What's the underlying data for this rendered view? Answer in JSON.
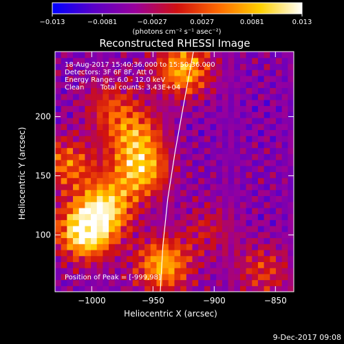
{
  "chart_data": {
    "type": "heatmap",
    "title": "Reconstructed RHESSI Image",
    "xlabel": "Heliocentric X (arcsec)",
    "ylabel": "Heliocentric Y (arcsec)",
    "xlim": [
      -1030,
      -835
    ],
    "ylim": [
      52,
      255
    ],
    "x_ticks": [
      -1000,
      -950,
      -900,
      -850
    ],
    "y_ticks": [
      100,
      150,
      200
    ],
    "x_tick_labels": [
      "−1000",
      "−950",
      "−900",
      "−850"
    ],
    "y_tick_labels": [
      "100",
      "150",
      "200"
    ],
    "colorbar": {
      "min": -0.013,
      "max": 0.013,
      "tick_labels": [
        "−0.013",
        "−0.0081",
        "−0.0027",
        "0.0027",
        "0.0081",
        "0.013"
      ],
      "unit_label": "(photons cm⁻² s⁻¹ asec⁻²)",
      "colors": [
        "#0000ff",
        "#5a00c8",
        "#9a009a",
        "#d01010",
        "#ff6a00",
        "#ffd000",
        "#ffffff"
      ]
    },
    "annotations": [
      "18-Aug-2017 15:40:36.000 to 15:50:36.000",
      "Detectors: 3F 6F 8F, Att 0",
      "Energy Range: 6.0 - 12.0 keV",
      "Clean",
      "Total counts: 3.43E+04"
    ],
    "peak_label": "Position of Peak = [-999,98]",
    "limb": [
      [
        -944,
        52
      ],
      [
        -942,
        90
      ],
      [
        -938,
        130
      ],
      [
        -932,
        170
      ],
      [
        -925,
        210
      ],
      [
        -917,
        255
      ]
    ],
    "sources": [
      {
        "x": -1005,
        "y": 103,
        "intensity": 1.0
      },
      {
        "x": -988,
        "y": 125,
        "intensity": 0.7
      },
      {
        "x": -960,
        "y": 155,
        "intensity": 0.7
      },
      {
        "x": -965,
        "y": 185,
        "intensity": 0.55
      },
      {
        "x": -925,
        "y": 240,
        "intensity": 0.7
      },
      {
        "x": -942,
        "y": 75,
        "intensity": 0.7
      },
      {
        "x": -1020,
        "y": 160,
        "intensity": 0.5
      },
      {
        "x": -985,
        "y": 210,
        "intensity": 0.35
      },
      {
        "x": -860,
        "y": 70,
        "intensity": 0.35
      },
      {
        "x": -905,
        "y": 105,
        "intensity": 0.25
      }
    ]
  },
  "footer": {
    "timestamp": "9-Dec-2017 09:08"
  }
}
